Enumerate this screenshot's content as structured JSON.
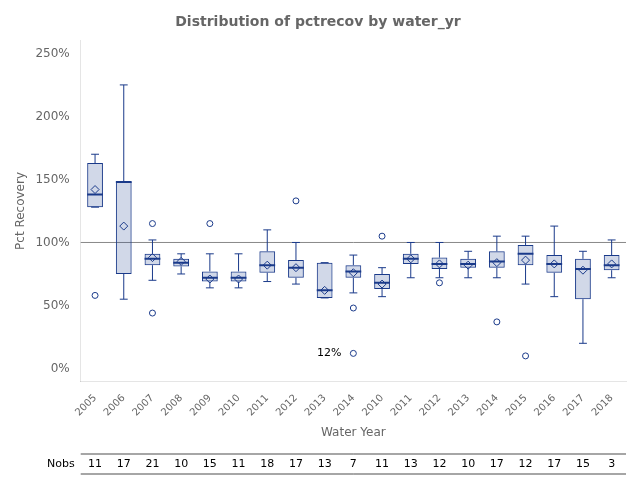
{
  "chart_data": {
    "type": "box",
    "title": "Distribution of pctrecov by water_yr",
    "xlabel": "Water Year",
    "ylabel": "Pct Recovery",
    "categories": [
      "2005",
      "2006",
      "2007",
      "2008",
      "2009",
      "2010",
      "2011",
      "2012",
      "2013",
      "2014",
      "2010",
      "2011",
      "2012",
      "2013",
      "2014",
      "2015",
      "2016",
      "2017",
      "2018"
    ],
    "boxes": [
      {
        "q1": 128,
        "med": 138,
        "q3": 163,
        "mean": 142,
        "whislo": 128,
        "whishi": 170,
        "fliers": [
          58
        ]
      },
      {
        "q1": 75,
        "med": 148,
        "q3": 148,
        "mean": 113,
        "whislo": 55,
        "whishi": 225,
        "fliers": []
      },
      {
        "q1": 82,
        "med": 87,
        "q3": 91,
        "mean": 88,
        "whislo": 70,
        "whishi": 102,
        "fliers": [
          44,
          115
        ]
      },
      {
        "q1": 81,
        "med": 84,
        "q3": 87,
        "mean": 85,
        "whislo": 75,
        "whishi": 91,
        "fliers": []
      },
      {
        "q1": 69,
        "med": 72,
        "q3": 77,
        "mean": 71,
        "whislo": 64,
        "whishi": 91,
        "fliers": [
          115
        ]
      },
      {
        "q1": 69,
        "med": 72,
        "q3": 77,
        "mean": 71,
        "whislo": 64,
        "whishi": 91,
        "fliers": []
      },
      {
        "q1": 76,
        "med": 82,
        "q3": 93,
        "mean": 82,
        "whislo": 69,
        "whishi": 110,
        "fliers": []
      },
      {
        "q1": 72,
        "med": 80,
        "q3": 86,
        "mean": 80,
        "whislo": 67,
        "whishi": 100,
        "fliers": [
          133
        ]
      },
      {
        "q1": 56,
        "med": 62,
        "q3": 84,
        "mean": 62,
        "whislo": 56,
        "whishi": 84,
        "fliers": []
      },
      {
        "q1": 72,
        "med": 77,
        "q3": 82,
        "mean": 76,
        "whislo": 60,
        "whishi": 90,
        "fliers": [
          48,
          12
        ]
      },
      {
        "q1": 63,
        "med": 68,
        "q3": 75,
        "mean": 67,
        "whislo": 57,
        "whishi": 80,
        "fliers": [
          105
        ]
      },
      {
        "q1": 83,
        "med": 87,
        "q3": 91,
        "mean": 87,
        "whislo": 72,
        "whishi": 100,
        "fliers": []
      },
      {
        "q1": 79,
        "med": 83,
        "q3": 88,
        "mean": 83,
        "whislo": 72,
        "whishi": 100,
        "fliers": [
          68
        ]
      },
      {
        "q1": 80,
        "med": 83,
        "q3": 87,
        "mean": 82,
        "whislo": 72,
        "whishi": 93,
        "fliers": []
      },
      {
        "q1": 80,
        "med": 85,
        "q3": 93,
        "mean": 84,
        "whislo": 72,
        "whishi": 105,
        "fliers": [
          37
        ]
      },
      {
        "q1": 82,
        "med": 91,
        "q3": 98,
        "mean": 86,
        "whislo": 67,
        "whishi": 105,
        "fliers": [
          10
        ]
      },
      {
        "q1": 76,
        "med": 83,
        "q3": 90,
        "mean": 83,
        "whislo": 57,
        "whishi": 113,
        "fliers": []
      },
      {
        "q1": 55,
        "med": 79,
        "q3": 87,
        "mean": 78,
        "whislo": 20,
        "whishi": 93,
        "fliers": []
      },
      {
        "q1": 78,
        "med": 82,
        "q3": 90,
        "mean": 83,
        "whislo": 72,
        "whishi": 102,
        "fliers": []
      }
    ],
    "nobs_label": "Nobs",
    "nobs": [
      11,
      17,
      21,
      10,
      15,
      11,
      18,
      17,
      13,
      7,
      11,
      13,
      12,
      10,
      17,
      12,
      17,
      15,
      3
    ],
    "annotations": [
      {
        "text": "12%",
        "x": 9,
        "y": 12
      }
    ],
    "ref_line": 100,
    "color": "#1a3a8a",
    "ylim": [
      -10,
      260
    ],
    "yticks": [
      {
        "value": 0,
        "label": "0%"
      },
      {
        "value": 50,
        "label": "50%"
      },
      {
        "value": 100,
        "label": "100%"
      },
      {
        "value": 150,
        "label": "150%"
      },
      {
        "value": 200,
        "label": "200%"
      },
      {
        "value": 250,
        "label": "250%"
      }
    ],
    "grid": false
  }
}
